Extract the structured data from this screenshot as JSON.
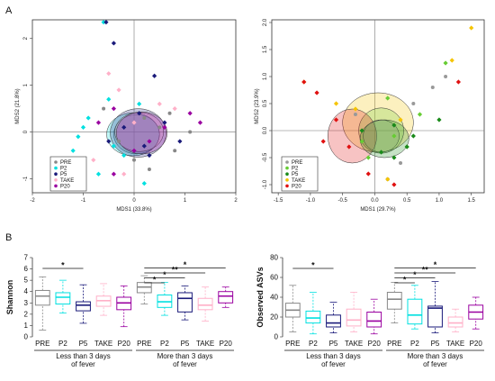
{
  "panel_labels": [
    "A",
    "B"
  ],
  "colors": {
    "PRE": "#888888",
    "P2": "#00e0e0",
    "P5": "#1a1a7a",
    "TAKE": "#ffb0c8",
    "P20": "#9a00a0",
    "g2_PRE": "#999999",
    "g2_P2": "#66cc33",
    "g2_P5": "#1a8a1a",
    "g2_TAKE": "#f5c400",
    "g2_P20": "#e01010"
  },
  "chart_data": [
    {
      "type": "scatter",
      "xlabel": "MDS1 (33.8%)",
      "ylabel": "MDS2 (21.8%)",
      "xlim": [
        -2,
        2
      ],
      "ylim": [
        -1.3,
        2.4
      ],
      "xticks": [
        "-2",
        "-1",
        "0",
        "1",
        "2"
      ],
      "yticks": [
        "-1",
        "0",
        "1",
        "2"
      ],
      "legend": [
        "PRE",
        "P2",
        "P5",
        "TAKE",
        "P20"
      ],
      "ellipses": [
        {
          "series": "PRE",
          "cx": 0.05,
          "cy": -0.05,
          "rx": 0.45,
          "ry": 0.42
        },
        {
          "series": "P2",
          "cx": -0.02,
          "cy": -0.05,
          "rx": 0.52,
          "ry": 0.46
        },
        {
          "series": "P5",
          "cx": 0.08,
          "cy": -0.02,
          "rx": 0.55,
          "ry": 0.52
        },
        {
          "series": "TAKE",
          "cx": 0.1,
          "cy": 0.0,
          "rx": 0.48,
          "ry": 0.42
        },
        {
          "series": "P20",
          "cx": 0.15,
          "cy": -0.02,
          "rx": 0.5,
          "ry": 0.45
        }
      ],
      "series": [
        {
          "name": "PRE",
          "points": [
            [
              0.8,
              -0.4
            ],
            [
              0.5,
              0.1
            ],
            [
              -0.3,
              -0.2
            ],
            [
              0.2,
              0.3
            ],
            [
              1.1,
              0.0
            ],
            [
              -0.6,
              0.5
            ],
            [
              0.0,
              -0.6
            ],
            [
              0.7,
              0.4
            ],
            [
              0.3,
              -0.8
            ]
          ]
        },
        {
          "name": "P2",
          "points": [
            [
              -0.6,
              2.35
            ],
            [
              -1.2,
              -0.4
            ],
            [
              -1.0,
              0.1
            ],
            [
              -0.7,
              -0.9
            ],
            [
              -0.5,
              0.7
            ],
            [
              0.2,
              -1.1
            ],
            [
              -0.4,
              -0.3
            ],
            [
              -1.1,
              -0.1
            ],
            [
              0.1,
              0.6
            ],
            [
              -0.2,
              -0.5
            ],
            [
              -0.9,
              0.3
            ]
          ]
        },
        {
          "name": "P5",
          "points": [
            [
              -0.55,
              2.35
            ],
            [
              -0.4,
              1.9
            ],
            [
              0.3,
              -0.5
            ],
            [
              0.6,
              0.2
            ],
            [
              -0.2,
              0.1
            ],
            [
              0.9,
              -0.2
            ],
            [
              0.1,
              0.4
            ],
            [
              -0.5,
              -0.2
            ],
            [
              0.4,
              1.2
            ],
            [
              0.2,
              -0.3
            ]
          ]
        },
        {
          "name": "TAKE",
          "points": [
            [
              -0.5,
              1.25
            ],
            [
              -0.3,
              0.9
            ],
            [
              0.5,
              0.6
            ],
            [
              -0.8,
              -0.6
            ],
            [
              0.0,
              0.2
            ],
            [
              0.8,
              0.5
            ],
            [
              -0.2,
              -0.9
            ]
          ]
        },
        {
          "name": "P20",
          "points": [
            [
              -0.4,
              0.5
            ],
            [
              0.6,
              0.1
            ],
            [
              1.1,
              0.4
            ],
            [
              0.3,
              -0.2
            ],
            [
              -0.7,
              0.2
            ],
            [
              1.3,
              0.2
            ],
            [
              0.0,
              -0.4
            ],
            [
              -0.4,
              -0.9
            ]
          ]
        }
      ]
    },
    {
      "type": "scatter",
      "xlabel": "MDS1 (29.7%)",
      "ylabel": "MDS2 (23.9%)",
      "xlim": [
        -1.6,
        1.7
      ],
      "ylim": [
        -1.15,
        2.05
      ],
      "xticks": [
        "-1.5",
        "-1.0",
        "-0.5",
        "0.0",
        "0.5",
        "1.0",
        "1.5"
      ],
      "yticks": [
        "-1.0",
        "-0.5",
        "0.0",
        "0.5",
        "1.0",
        "1.5",
        "2.0"
      ],
      "legend": [
        "PRE",
        "P2",
        "P5",
        "TAKE",
        "P20"
      ],
      "ellipses": [
        {
          "series": "TAKE",
          "cx": 0.05,
          "cy": 0.15,
          "rx": 0.55,
          "ry": 0.55
        },
        {
          "series": "P2",
          "cx": 0.1,
          "cy": 0.0,
          "rx": 0.35,
          "ry": 0.42
        },
        {
          "series": "P20",
          "cx": -0.35,
          "cy": -0.1,
          "rx": 0.38,
          "ry": 0.5
        },
        {
          "series": "PRE",
          "cx": 0.1,
          "cy": -0.1,
          "rx": 0.28,
          "ry": 0.3
        },
        {
          "series": "P5",
          "cx": 0.15,
          "cy": -0.15,
          "rx": 0.38,
          "ry": 0.35
        }
      ],
      "series": [
        {
          "name": "PRE",
          "points": [
            [
              0.2,
              -0.9
            ],
            [
              0.6,
              0.5
            ],
            [
              0.9,
              0.8
            ],
            [
              0.4,
              -0.6
            ],
            [
              -0.3,
              0.3
            ],
            [
              1.1,
              1.0
            ]
          ]
        },
        {
          "name": "P2",
          "points": [
            [
              1.1,
              1.25
            ],
            [
              -0.2,
              -0.2
            ],
            [
              0.2,
              0.6
            ],
            [
              0.3,
              -0.1
            ],
            [
              0.5,
              -0.3
            ],
            [
              -0.1,
              -0.5
            ],
            [
              0.7,
              0.3
            ]
          ]
        },
        {
          "name": "P5",
          "points": [
            [
              0.5,
              -0.3
            ],
            [
              0.3,
              0.1
            ],
            [
              0.1,
              -0.4
            ],
            [
              -0.2,
              0.0
            ],
            [
              0.6,
              -0.1
            ],
            [
              1.0,
              0.2
            ],
            [
              0.3,
              -0.5
            ]
          ]
        },
        {
          "name": "TAKE",
          "points": [
            [
              1.5,
              1.9
            ],
            [
              -1.1,
              0.9
            ],
            [
              1.2,
              1.3
            ],
            [
              -0.3,
              0.4
            ],
            [
              -0.6,
              0.5
            ],
            [
              0.4,
              0.2
            ],
            [
              0.2,
              -0.9
            ]
          ]
        },
        {
          "name": "P20",
          "points": [
            [
              -1.1,
              0.9
            ],
            [
              -0.9,
              0.7
            ],
            [
              -0.6,
              0.2
            ],
            [
              -0.4,
              -0.3
            ],
            [
              -0.1,
              -0.8
            ],
            [
              0.3,
              -1.0
            ],
            [
              1.3,
              0.9
            ],
            [
              -0.8,
              -0.2
            ]
          ]
        }
      ]
    },
    {
      "type": "box",
      "ylabel": "Shannon",
      "ylim": [
        0,
        7
      ],
      "yticks": [
        "0",
        "1",
        "2",
        "3",
        "4",
        "5",
        "6",
        "7"
      ],
      "categories": [
        "PRE",
        "P2",
        "P5",
        "TAKE",
        "P20",
        "PRE",
        "P2",
        "P5",
        "TAKE",
        "P20"
      ],
      "groups": [
        "Less than 3 days\nof fever",
        "More than 3 days\nof fever"
      ],
      "boxes": [
        {
          "min": 0.6,
          "q1": 2.8,
          "median": 3.6,
          "q3": 4.1,
          "max": 5.3
        },
        {
          "min": 2.1,
          "q1": 2.9,
          "median": 3.5,
          "q3": 3.9,
          "max": 5.0
        },
        {
          "min": 1.2,
          "q1": 2.3,
          "median": 2.8,
          "q3": 3.1,
          "max": 4.6
        },
        {
          "min": 1.9,
          "q1": 2.7,
          "median": 3.2,
          "q3": 3.6,
          "max": 4.7
        },
        {
          "min": 0.9,
          "q1": 2.4,
          "median": 3.0,
          "q3": 3.5,
          "max": 4.5
        },
        {
          "min": 2.9,
          "q1": 3.9,
          "median": 4.4,
          "q3": 4.8,
          "max": 5.4
        },
        {
          "min": 1.9,
          "q1": 2.6,
          "median": 3.1,
          "q3": 3.7,
          "max": 4.8
        },
        {
          "min": 1.5,
          "q1": 2.2,
          "median": 3.4,
          "q3": 3.9,
          "max": 4.5
        },
        {
          "min": 1.4,
          "q1": 2.4,
          "median": 2.8,
          "q3": 3.4,
          "max": 4.4
        },
        {
          "min": 2.6,
          "q1": 3.0,
          "median": 3.6,
          "q3": 4.0,
          "max": 4.4
        }
      ],
      "significance": [
        {
          "from": 0,
          "to": 2,
          "label": "*"
        },
        {
          "from": 5,
          "to": 6,
          "label": "*"
        },
        {
          "from": 5,
          "to": 7,
          "label": "*"
        },
        {
          "from": 5,
          "to": 8,
          "label": "**"
        },
        {
          "from": 5,
          "to": 9,
          "label": "*"
        }
      ]
    },
    {
      "type": "box",
      "ylabel": "Observed ASVs",
      "ylim": [
        0,
        80
      ],
      "yticks": [
        "0",
        "20",
        "40",
        "60",
        "80"
      ],
      "categories": [
        "PRE",
        "P2",
        "P5",
        "TAKE",
        "P20",
        "PRE",
        "P2",
        "P5",
        "TAKE",
        "P20"
      ],
      "groups": [
        "Less than 3 days\nof fever",
        "More than 3 days\nof fever"
      ],
      "boxes": [
        {
          "min": 5,
          "q1": 20,
          "median": 27,
          "q3": 34,
          "max": 52
        },
        {
          "min": 3,
          "q1": 14,
          "median": 19,
          "q3": 26,
          "max": 45
        },
        {
          "min": 4,
          "q1": 10,
          "median": 14,
          "q3": 22,
          "max": 35
        },
        {
          "min": 5,
          "q1": 11,
          "median": 17,
          "q3": 28,
          "max": 45
        },
        {
          "min": 3,
          "q1": 10,
          "median": 16,
          "q3": 25,
          "max": 38
        },
        {
          "min": 14,
          "q1": 28,
          "median": 38,
          "q3": 45,
          "max": 55
        },
        {
          "min": 8,
          "q1": 13,
          "median": 22,
          "q3": 38,
          "max": 52
        },
        {
          "min": 4,
          "q1": 10,
          "median": 29,
          "q3": 31,
          "max": 56
        },
        {
          "min": 5,
          "q1": 10,
          "median": 14,
          "q3": 20,
          "max": 28
        },
        {
          "min": 8,
          "q1": 18,
          "median": 25,
          "q3": 32,
          "max": 40
        }
      ],
      "significance": [
        {
          "from": 0,
          "to": 2,
          "label": "*"
        },
        {
          "from": 5,
          "to": 6,
          "label": "*"
        },
        {
          "from": 5,
          "to": 7,
          "label": "*"
        },
        {
          "from": 5,
          "to": 8,
          "label": "**"
        },
        {
          "from": 5,
          "to": 9,
          "label": "*"
        }
      ]
    }
  ]
}
